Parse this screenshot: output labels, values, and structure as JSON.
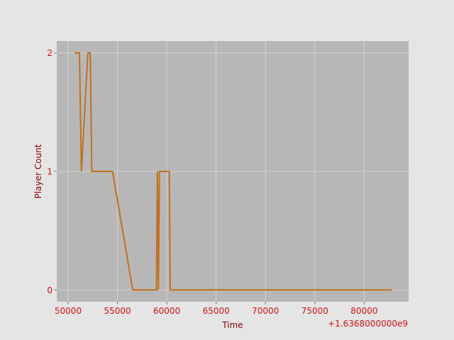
{
  "colors": {
    "figure_bg": "#e5e5e5",
    "axes_bg": "#b7b7b7",
    "grid": "#d9d9d9",
    "line": "#c0711e",
    "tick_text": "#cc1111",
    "label_text": "#8b0000"
  },
  "chart_data": {
    "type": "line",
    "title": "",
    "xlabel": "Time",
    "ylabel": "Player Count",
    "x_offset_label": "+1.6368000000e9",
    "grid": true,
    "xlim": [
      48850,
      84500
    ],
    "ylim": [
      -0.1,
      2.1
    ],
    "xticks": [
      50000,
      55000,
      60000,
      65000,
      70000,
      75000,
      80000
    ],
    "xtick_labels": [
      "50000",
      "55000",
      "60000",
      "65000",
      "70000",
      "75000",
      "80000"
    ],
    "yticks": [
      0,
      1,
      2
    ],
    "ytick_labels": [
      "0",
      "1",
      "2"
    ],
    "series": [
      {
        "name": "Player Count",
        "x": [
          50650,
          51150,
          51350,
          52000,
          52250,
          52400,
          54500,
          56550,
          58950,
          59050,
          59150,
          59250,
          59350,
          60250,
          60350,
          82800
        ],
        "y": [
          2,
          2,
          1,
          2,
          2,
          1,
          1,
          0,
          0,
          1,
          0,
          1,
          1,
          1,
          0,
          0
        ]
      }
    ]
  }
}
